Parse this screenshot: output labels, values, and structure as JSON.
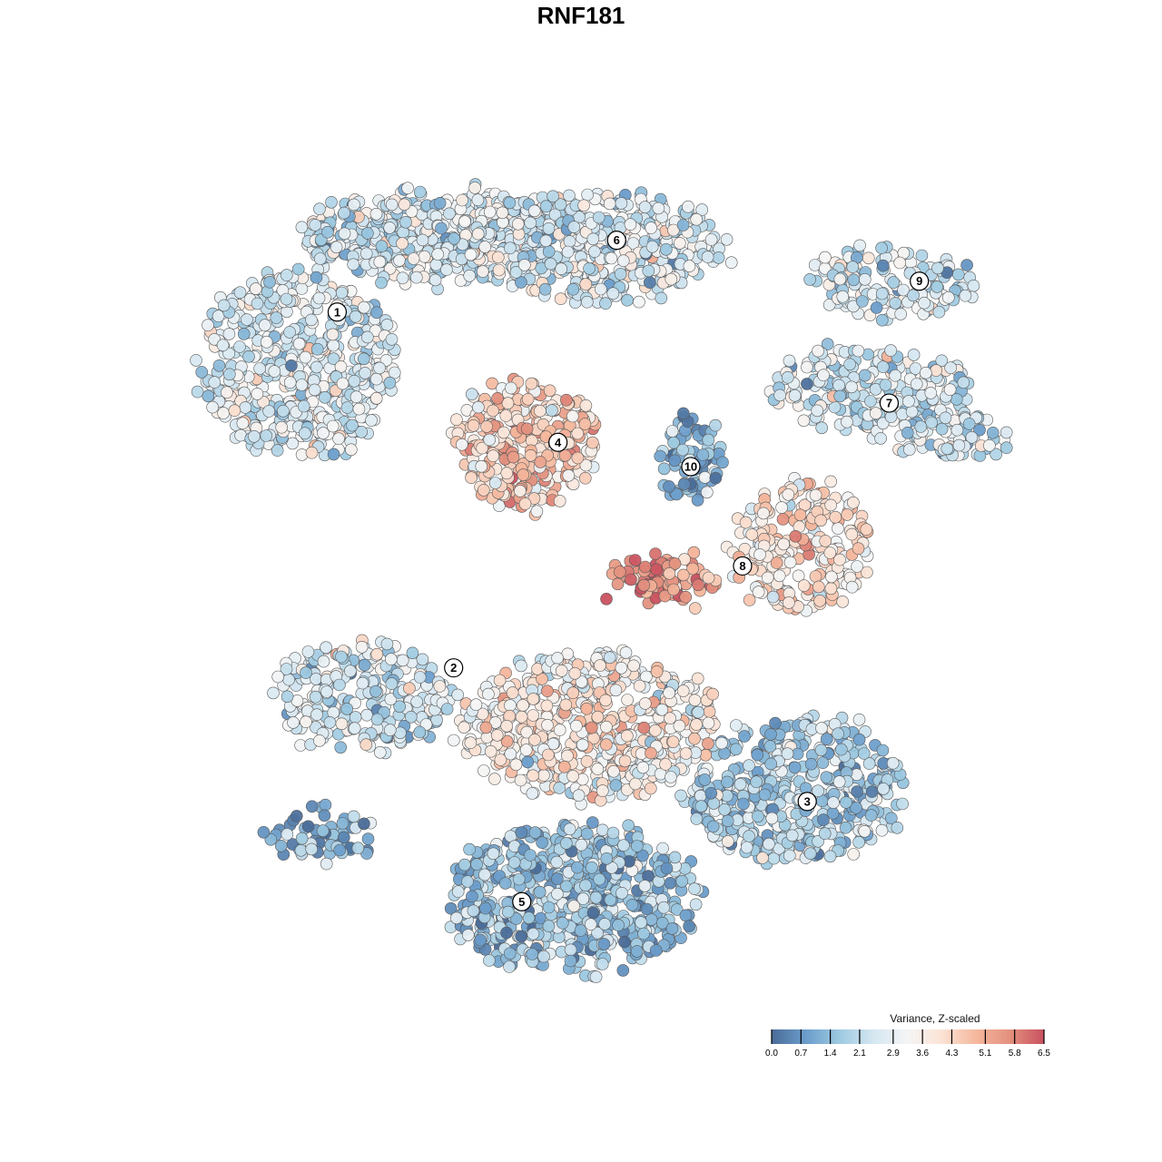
{
  "chart_data": {
    "type": "scatter",
    "title": "RNF181",
    "xlabel": "",
    "ylabel": "",
    "xlim": [
      -50,
      50
    ],
    "ylim": [
      -50,
      50
    ],
    "grid": false,
    "legend": {
      "title": "Variance, Z-scaled",
      "placement": "bottom-right",
      "range": [
        0,
        6.5
      ],
      "ticks": [
        "0.0",
        "0.7",
        "1.4",
        "2.1",
        "2.9",
        "3.6",
        "4.3",
        "5.1",
        "5.8",
        "6.5"
      ],
      "colors": [
        "#4a6c98",
        "#6b9dcb",
        "#9ecae1",
        "#d5e7f1",
        "#f5f5f5",
        "#fbe3d5",
        "#f5b89d",
        "#e3907e",
        "#c9515f"
      ]
    },
    "clusters": [
      {
        "label": "1",
        "label_pos": [
          -30.9,
          32.2
        ],
        "blobs": [
          {
            "center": [
              -35.3,
              26.1
            ],
            "spread": [
              11.6,
              10.9
            ],
            "n": 520,
            "mean": 2.6
          },
          {
            "center": [
              -20.5,
              41.3
            ],
            "spread": [
              14.7,
              5.4
            ],
            "n": 420,
            "mean": 2.5
          }
        ]
      },
      {
        "label": "6",
        "label_pos": [
          1.5,
          40.8
        ],
        "blobs": [
          {
            "center": [
              -1.6,
              40.2
            ],
            "spread": [
              15.8,
              6.5
            ],
            "n": 450,
            "mean": 2.6
          }
        ]
      },
      {
        "label": "9",
        "label_pos": [
          36.6,
          35.9
        ],
        "blobs": [
          {
            "center": [
              33.2,
              35.9
            ],
            "spread": [
              9.5,
              4.3
            ],
            "n": 150,
            "mean": 2.4
          }
        ]
      },
      {
        "label": "7",
        "label_pos": [
          33.1,
          21.3
        ],
        "blobs": [
          {
            "center": [
              31.1,
              22.8
            ],
            "spread": [
              11.6,
              4.9
            ],
            "n": 220,
            "mean": 2.5
          },
          {
            "center": [
              40.5,
              17.4
            ],
            "spread": [
              6.3,
              2.7
            ],
            "n": 80,
            "mean": 2.2
          }
        ]
      },
      {
        "label": "4",
        "label_pos": [
          -5.3,
          16.6
        ],
        "blobs": [
          {
            "center": [
              -8.9,
              16.3
            ],
            "spread": [
              8.4,
              7.6
            ],
            "n": 300,
            "mean": 4.2
          }
        ]
      },
      {
        "label": "10",
        "label_pos": [
          10.1,
          13.7
        ],
        "blobs": [
          {
            "center": [
              10.0,
              14.7
            ],
            "spread": [
              3.7,
              4.9
            ],
            "n": 80,
            "mean": 1.2
          }
        ]
      },
      {
        "label": "8",
        "label_pos": [
          16.1,
          1.8
        ],
        "blobs": [
          {
            "center": [
              22.6,
              4.3
            ],
            "spread": [
              8.4,
              7.6
            ],
            "n": 220,
            "mean": 3.9
          },
          {
            "center": [
              6.8,
              0.0
            ],
            "spread": [
              6.3,
              2.7
            ],
            "n": 90,
            "mean": 5.4
          }
        ]
      },
      {
        "label": "2",
        "label_pos": [
          -17.4,
          -10.4
        ],
        "blobs": [
          {
            "center": [
              -27.9,
              -14.1
            ],
            "spread": [
              10.5,
              6.5
            ],
            "n": 250,
            "mean": 2.4
          },
          {
            "center": [
              -33.0,
              -30.4
            ],
            "spread": [
              6.3,
              3.3
            ],
            "n": 60,
            "mean": 1.2
          }
        ]
      },
      {
        "label": "3",
        "label_pos": [
          23.6,
          -26.4
        ],
        "blobs": [
          {
            "center": [
              22.6,
              -25.0
            ],
            "spread": [
              12.6,
              8.7
            ],
            "n": 450,
            "mean": 1.9
          }
        ]
      },
      {
        "label": "5",
        "label_pos": [
          -9.5,
          -38.4
        ],
        "blobs": [
          {
            "center": [
              -3.7,
              -38.0
            ],
            "spread": [
              14.7,
              8.7
            ],
            "n": 600,
            "mean": 1.6
          },
          {
            "center": [
              -1.6,
              -17.4
            ],
            "spread": [
              14.7,
              8.7
            ],
            "n": 600,
            "mean": 3.4
          }
        ]
      }
    ]
  }
}
